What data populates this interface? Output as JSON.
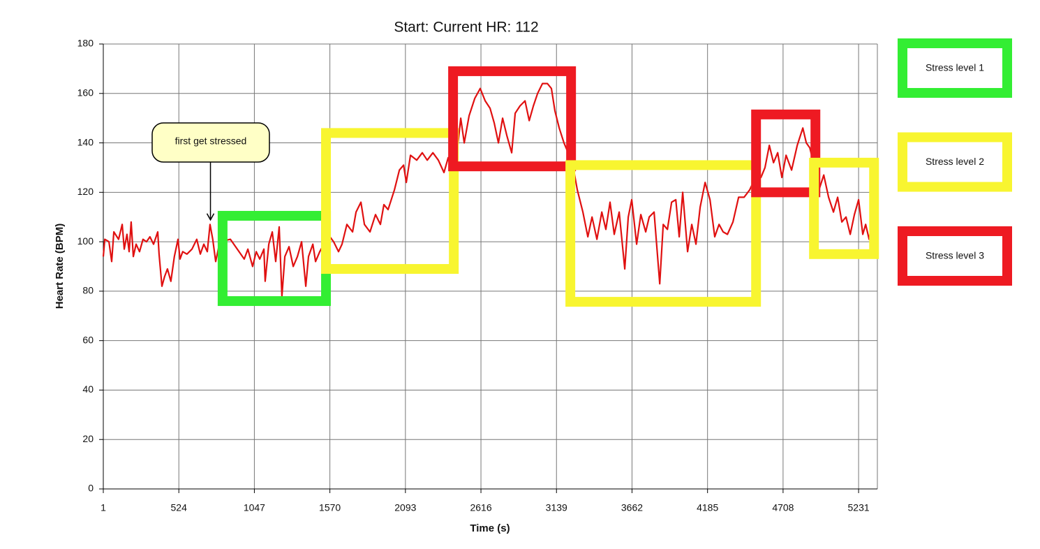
{
  "chart_data": {
    "type": "line",
    "title": "Start: Current HR: 112",
    "x_label": "Time (s)",
    "y_label": "Heart Rate (BPM)",
    "color": "#e01010",
    "x": [
      1,
      11,
      40,
      59,
      74,
      107,
      132,
      146,
      165,
      180,
      194,
      209,
      228,
      252,
      276,
      300,
      324,
      349,
      378,
      387,
      407,
      426,
      445,
      469,
      493,
      518,
      532,
      551,
      580,
      615,
      648,
      673,
      697,
      721,
      740,
      759,
      779,
      808,
      881,
      929,
      977,
      1002,
      1035,
      1060,
      1084,
      1113,
      1122,
      1147,
      1171,
      1195,
      1219,
      1238,
      1258,
      1287,
      1316,
      1345,
      1374,
      1403,
      1422,
      1452,
      1471,
      1500,
      1519,
      1558,
      1596,
      1630,
      1654,
      1688,
      1727,
      1751,
      1785,
      1809,
      1848,
      1886,
      1920,
      1944,
      1973,
      2017,
      2051,
      2080,
      2099,
      2128,
      2171,
      2210,
      2244,
      2283,
      2321,
      2360,
      2389,
      2418,
      2452,
      2476,
      2500,
      2534,
      2573,
      2611,
      2645,
      2679,
      2708,
      2737,
      2766,
      2795,
      2829,
      2853,
      2887,
      2921,
      2950,
      2979,
      3008,
      3042,
      3076,
      3104,
      3128,
      3158,
      3191,
      3249,
      3283,
      3322,
      3356,
      3385,
      3419,
      3453,
      3481,
      3510,
      3539,
      3573,
      3612,
      3636,
      3660,
      3694,
      3723,
      3757,
      3781,
      3815,
      3854,
      3878,
      3907,
      3936,
      3965,
      3989,
      4013,
      4047,
      4076,
      4105,
      4134,
      4168,
      4202,
      4235,
      4265,
      4293,
      4323,
      4361,
      4400,
      4438,
      4477,
      4525,
      4555,
      4583,
      4613,
      4642,
      4671,
      4700,
      4729,
      4767,
      4806,
      4845,
      4869,
      4893,
      4922,
      4951,
      4990,
      5023,
      5057,
      5086,
      5115,
      5144,
      5173,
      5202,
      5231,
      5260,
      5280,
      5304,
      5328
    ],
    "values": [
      94,
      101,
      100,
      92,
      104,
      101,
      107,
      97,
      103,
      96,
      108,
      94,
      99,
      96,
      101,
      100,
      102,
      99,
      104,
      95,
      82,
      86,
      89,
      84,
      94,
      101,
      93,
      96,
      95,
      97,
      101,
      95,
      99,
      96,
      107,
      101,
      92,
      100,
      101,
      97,
      93,
      97,
      90,
      96,
      93,
      97,
      84,
      99,
      104,
      92,
      106,
      78,
      94,
      98,
      90,
      94,
      100,
      82,
      94,
      99,
      92,
      96,
      98,
      103,
      100,
      96,
      99,
      107,
      104,
      112,
      116,
      107,
      104,
      111,
      107,
      115,
      113,
      121,
      129,
      131,
      124,
      135,
      133,
      136,
      133,
      136,
      133,
      128,
      134,
      128,
      137,
      150,
      140,
      151,
      158,
      162,
      157,
      154,
      148,
      140,
      150,
      143,
      136,
      152,
      155,
      157,
      149,
      155,
      160,
      164,
      164,
      162,
      153,
      146,
      140,
      132,
      121,
      112,
      102,
      110,
      101,
      112,
      105,
      116,
      103,
      112,
      89,
      110,
      117,
      99,
      111,
      104,
      110,
      112,
      83,
      107,
      105,
      116,
      117,
      102,
      120,
      96,
      107,
      99,
      114,
      124,
      117,
      102,
      107,
      104,
      103,
      108,
      118,
      118,
      121,
      127,
      126,
      130,
      139,
      132,
      136,
      126,
      135,
      129,
      139,
      146,
      140,
      138,
      131,
      120,
      127,
      118,
      112,
      118,
      108,
      110,
      103,
      111,
      117,
      103,
      107,
      101,
      109
    ],
    "xlim": [
      1,
      5361
    ],
    "xticks": [
      1,
      524,
      1047,
      1570,
      2093,
      2616,
      3139,
      3662,
      4185,
      4708,
      5231
    ],
    "ylim": [
      0,
      180
    ],
    "yticks": [
      0,
      20,
      40,
      60,
      80,
      100,
      120,
      140,
      160,
      180
    ],
    "grid": true,
    "annotation": {
      "text": "first get stressed",
      "x": 743,
      "y": 108
    },
    "regions": [
      {
        "color": "#33ee33",
        "x": [
          827,
          1543
        ],
        "y": [
          76,
          110.5
        ]
      },
      {
        "color": "#f8f530",
        "x": [
          1543,
          2428
        ],
        "y": [
          89,
          144
        ]
      },
      {
        "color": "#ee1a22",
        "x": [
          2423,
          3240
        ],
        "y": [
          130.5,
          169
        ]
      },
      {
        "color": "#f8f530",
        "x": [
          3235,
          4521
        ],
        "y": [
          75.7,
          131
        ]
      },
      {
        "color": "#ee1a22",
        "x": [
          4521,
          4932
        ],
        "y": [
          120,
          151.5
        ]
      },
      {
        "color": "#f8f530",
        "x": [
          4922,
          5338
        ],
        "y": [
          95,
          132
        ]
      }
    ],
    "legend": [
      {
        "name": "Stress level 1",
        "color": "#33ee33"
      },
      {
        "name": "Stress level 2",
        "color": "#f8f530"
      },
      {
        "name": "Stress level 3",
        "color": "#ee1a22"
      }
    ]
  }
}
